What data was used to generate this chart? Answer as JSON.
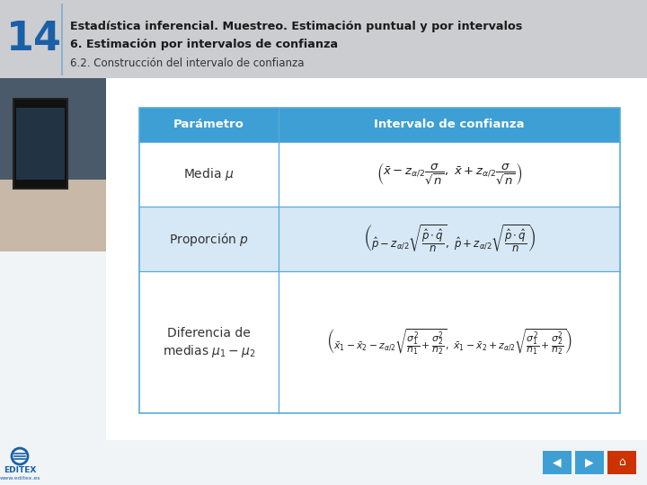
{
  "title_number": "14",
  "title_line1": "Estadística inferencial. Muestreo. Estimación puntual y por intervalos",
  "title_line2": "6. Estimación por intervalos de confianza",
  "title_line3": "6.2. Construcción del intervalo de confianza",
  "header_col1": "Parámetro",
  "header_col2": "Intervalo de confianza",
  "row1_param": "Media $\\mu$",
  "row2_param": "Proporción $p$",
  "row3_param_line1": "Diferencia de",
  "row3_param_line2": "medias $\\mu_1 - \\mu_2$",
  "row1_formula": "$\\left(\\bar{x} - z_{\\alpha/2}\\dfrac{\\sigma}{\\sqrt{n}},\\ \\bar{x} + z_{\\alpha/2}\\dfrac{\\sigma}{\\sqrt{n}}\\right)$",
  "row2_formula": "$\\left(\\hat{p} - z_{\\alpha/2}\\sqrt{\\dfrac{\\hat{p}\\cdot\\hat{q}}{n}},\\ \\hat{p} + z_{\\alpha/2}\\sqrt{\\dfrac{\\hat{p}\\cdot\\hat{q}}{n}}\\right)$",
  "row3_formula": "$\\left(\\bar{x}_1 - \\bar{x}_2 - z_{\\alpha/2}\\sqrt{\\dfrac{\\sigma_1^2}{n_1}+\\dfrac{\\sigma_2^2}{n_2}},\\ \\bar{x}_1 - \\bar{x}_2 + z_{\\alpha/2}\\sqrt{\\dfrac{\\sigma_1^2}{n_1}+\\dfrac{\\sigma_2^2}{n_2}}\\right)$",
  "bg_color": "#e8edf2",
  "header_bg_color": "#c8cdd2",
  "header_bg": "#3d9fd4",
  "header_text_color": "#ffffff",
  "row_alt_color": "#d6e8f5",
  "row_white": "#ffffff",
  "table_border_color": "#5aaad8",
  "title_num_color": "#1a5fa8",
  "title_text_color": "#1a1a1a",
  "subtitle_color": "#333333",
  "editex_color": "#1a5fa8",
  "nav_blue": "#3d9fd4",
  "nav_red": "#cc3300"
}
